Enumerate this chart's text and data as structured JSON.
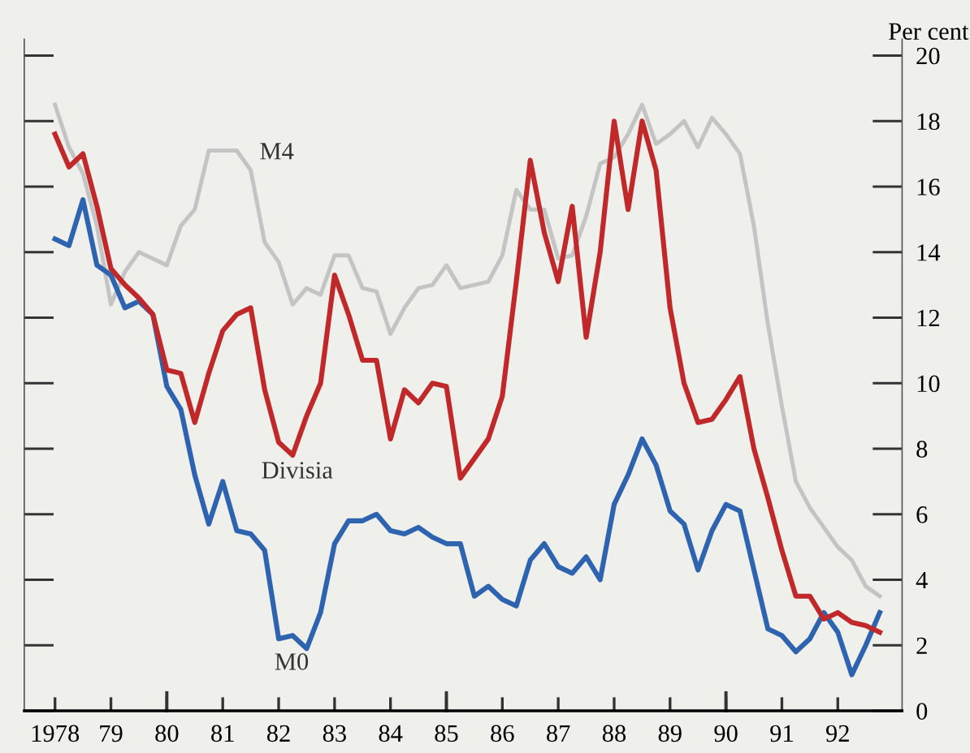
{
  "chart_data": {
    "type": "line",
    "ylabel": "Per cent",
    "x": [
      1978.0,
      1978.25,
      1978.5,
      1978.75,
      1979.0,
      1979.25,
      1979.5,
      1979.75,
      1980.0,
      1980.25,
      1980.5,
      1980.75,
      1981.0,
      1981.25,
      1981.5,
      1981.75,
      1982.0,
      1982.25,
      1982.5,
      1982.75,
      1983.0,
      1983.25,
      1983.5,
      1983.75,
      1984.0,
      1984.25,
      1984.5,
      1984.75,
      1985.0,
      1985.25,
      1985.5,
      1985.75,
      1986.0,
      1986.25,
      1986.5,
      1986.75,
      1987.0,
      1987.25,
      1987.5,
      1987.75,
      1988.0,
      1988.25,
      1988.5,
      1988.75,
      1989.0,
      1989.25,
      1989.5,
      1989.75,
      1990.0,
      1990.25,
      1990.5,
      1990.75,
      1991.0,
      1991.25,
      1991.5,
      1991.75,
      1992.0,
      1992.25,
      1992.5,
      1992.75
    ],
    "series": [
      {
        "name": "M4",
        "color": "#c4c4c4",
        "values": [
          18.5,
          17.2,
          16.4,
          14.8,
          12.4,
          13.4,
          14.0,
          13.8,
          13.6,
          14.8,
          15.3,
          17.1,
          17.1,
          17.1,
          16.5,
          14.3,
          13.7,
          12.4,
          12.9,
          12.7,
          13.9,
          13.9,
          12.9,
          12.8,
          11.5,
          12.3,
          12.9,
          13.0,
          13.6,
          12.9,
          13.0,
          13.1,
          13.9,
          15.9,
          15.3,
          15.3,
          13.8,
          13.9,
          15.1,
          16.7,
          16.9,
          17.6,
          18.5,
          17.3,
          17.6,
          18.0,
          17.2,
          18.1,
          17.6,
          17.0,
          14.8,
          11.8,
          9.3,
          7.0,
          6.2,
          5.6,
          5.0,
          4.6,
          3.8,
          3.5
        ]
      },
      {
        "name": "Divisia",
        "color": "#c0282a",
        "values": [
          17.6,
          16.6,
          17.0,
          15.4,
          13.5,
          13.0,
          12.6,
          12.1,
          10.4,
          10.3,
          8.8,
          10.3,
          11.6,
          12.1,
          12.3,
          9.8,
          8.2,
          7.8,
          9.0,
          10.0,
          13.3,
          12.1,
          10.7,
          10.7,
          8.3,
          9.8,
          9.4,
          10.0,
          9.9,
          7.1,
          7.7,
          8.3,
          9.6,
          13.1,
          16.8,
          14.6,
          13.1,
          15.4,
          11.4,
          14.0,
          18.0,
          15.3,
          18.0,
          16.5,
          12.3,
          10.0,
          8.8,
          8.9,
          9.5,
          10.2,
          8.0,
          6.5,
          4.9,
          3.5,
          3.5,
          2.8,
          3.0,
          2.7,
          2.6,
          2.4
        ]
      },
      {
        "name": "M0",
        "color": "#2e63b0",
        "values": [
          14.4,
          14.2,
          15.6,
          13.6,
          13.3,
          12.3,
          12.5,
          12.1,
          9.9,
          9.2,
          7.2,
          5.7,
          7.0,
          5.5,
          5.4,
          4.9,
          2.2,
          2.3,
          1.9,
          3.0,
          5.1,
          5.8,
          5.8,
          6.0,
          5.5,
          5.4,
          5.6,
          5.3,
          5.1,
          5.1,
          3.5,
          3.8,
          3.4,
          3.2,
          4.6,
          5.1,
          4.4,
          4.2,
          4.7,
          4.0,
          6.3,
          7.2,
          8.3,
          7.5,
          6.1,
          5.7,
          4.3,
          5.5,
          6.3,
          6.1,
          4.3,
          2.5,
          2.3,
          1.8,
          2.2,
          3.0,
          2.4,
          1.1,
          2.0,
          3.0
        ]
      }
    ],
    "xlim": [
      1977.45,
      1993.15
    ],
    "xticks": [
      1978,
      {
        "value": 1979,
        "label": "79"
      },
      {
        "value": 1980,
        "label": "80"
      },
      {
        "value": 1981,
        "label": "81"
      },
      {
        "value": 1982,
        "label": "82"
      },
      {
        "value": 1983,
        "label": "83"
      },
      {
        "value": 1984,
        "label": "84"
      },
      {
        "value": 1985,
        "label": "85"
      },
      {
        "value": 1986,
        "label": "86"
      },
      {
        "value": 1987,
        "label": "87"
      },
      {
        "value": 1988,
        "label": "88"
      },
      {
        "value": 1989,
        "label": "89"
      },
      {
        "value": 1990,
        "label": "90"
      },
      {
        "value": 1991,
        "label": "91"
      },
      {
        "value": 1992,
        "label": "92"
      }
    ],
    "ylim": [
      0,
      20.5
    ],
    "yticks": [
      0,
      2,
      4,
      6,
      8,
      10,
      12,
      14,
      16,
      18,
      20
    ],
    "grid": false,
    "legend": false,
    "line_style": "solid",
    "marker": "none"
  }
}
